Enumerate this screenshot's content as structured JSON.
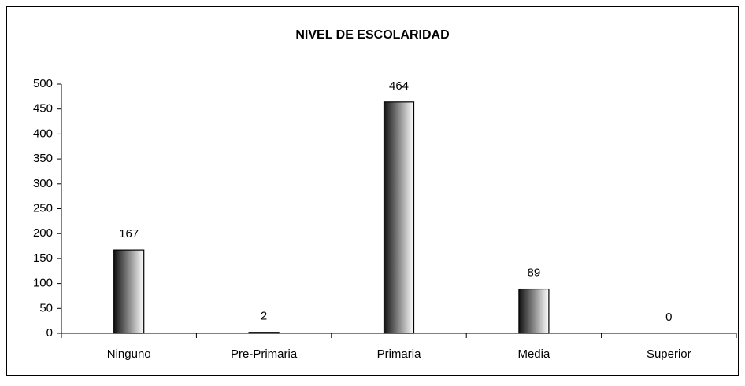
{
  "chart_data": {
    "type": "bar",
    "title": "NIVEL DE ESCOLARIDAD",
    "categories": [
      "Ninguno",
      "Pre-Primaria",
      "Primaria",
      "Media",
      "Superior"
    ],
    "values": [
      167,
      2,
      464,
      89,
      0
    ],
    "ylim": [
      0,
      500
    ],
    "yticks": [
      0,
      50,
      100,
      150,
      200,
      250,
      300,
      350,
      400,
      450,
      500
    ],
    "grid": false,
    "data_labels": true
  }
}
